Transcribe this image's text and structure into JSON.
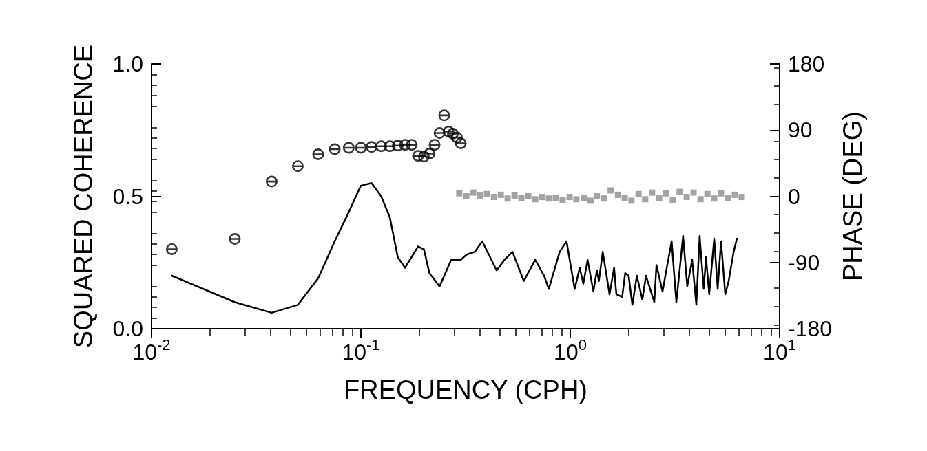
{
  "chart_data": {
    "type": "line",
    "xlabel": "FREQUENCY (CPH)",
    "ylabel": "SQUARED COHERENCE",
    "y2label": "PHASE (DEG)",
    "log": "x",
    "grid": false,
    "xlim": [
      0.01,
      10
    ],
    "xticks": [
      {
        "value": 0.01,
        "label": "10$^{-2}$"
      },
      {
        "value": 0.1,
        "label": "10$^{-1}$"
      },
      {
        "value": 1,
        "label": "10$^{0}$"
      },
      {
        "value": 10,
        "label": "10$^{1}$"
      }
    ],
    "ylim": [
      0,
      1
    ],
    "yticks": [
      {
        "value": 0,
        "label": "0.0"
      },
      {
        "value": 0.5,
        "label": "0.5"
      },
      {
        "value": 1,
        "label": "1.0"
      }
    ],
    "y2lim": [
      -180,
      180
    ],
    "y2ticks": [
      -180,
      -90,
      0,
      90,
      180
    ],
    "series": [
      {
        "color": "#000000",
        "marker": "none",
        "line_style": "solid",
        "x": [
          0.0125,
          0.025,
          0.0375,
          0.05,
          0.0625,
          0.075,
          0.0875,
          0.1,
          0.1125,
          0.125,
          0.1375,
          0.15,
          0.1625,
          0.1875,
          0.2,
          0.2125,
          0.2375,
          0.27,
          0.3,
          0.32,
          0.35,
          0.38,
          0.445,
          0.485,
          0.53,
          0.6,
          0.68,
          0.75,
          0.79,
          0.89,
          0.96,
          1.05,
          1.11,
          1.155,
          1.21,
          1.29,
          1.34,
          1.37,
          1.43,
          1.54,
          1.62,
          1.66,
          1.77,
          1.83,
          1.9,
          1.98,
          2.08,
          2.21,
          2.3,
          2.43,
          2.52,
          2.58,
          2.76,
          2.86,
          3.05,
          3.21,
          3.46,
          3.62,
          3.82,
          4.0,
          4.15,
          4.34,
          4.45,
          4.61,
          4.87,
          5.06,
          5.25,
          5.5,
          5.71,
          6.03,
          6.25
        ],
        "values": [
          0.2,
          0.1,
          0.06,
          0.09,
          0.19,
          0.33,
          0.44,
          0.54,
          0.55,
          0.5,
          0.42,
          0.27,
          0.23,
          0.31,
          0.3,
          0.21,
          0.16,
          0.26,
          0.26,
          0.28,
          0.29,
          0.33,
          0.22,
          0.26,
          0.29,
          0.18,
          0.26,
          0.2,
          0.15,
          0.29,
          0.33,
          0.15,
          0.23,
          0.17,
          0.26,
          0.14,
          0.22,
          0.18,
          0.29,
          0.13,
          0.23,
          0.13,
          0.12,
          0.21,
          0.2,
          0.09,
          0.2,
          0.11,
          0.2,
          0.14,
          0.1,
          0.24,
          0.14,
          0.21,
          0.33,
          0.1,
          0.35,
          0.16,
          0.26,
          0.09,
          0.35,
          0.15,
          0.27,
          0.13,
          0.34,
          0.15,
          0.33,
          0.13,
          0.18,
          0.29,
          0.34
        ]
      },
      {
        "type": "scatter",
        "axis": "y2",
        "color": "#000000",
        "marker": "circle",
        "x": [
          0.0125,
          0.025,
          0.0375,
          0.05,
          0.0625,
          0.075,
          0.0875,
          0.1,
          0.1125,
          0.125,
          0.1375,
          0.15,
          0.1625,
          0.175,
          0.1875,
          0.2,
          0.2125,
          0.225,
          0.2375,
          0.25,
          0.2625,
          0.275,
          0.2875,
          0.3
        ],
        "values": [
          -72,
          -58,
          20,
          41,
          57,
          64,
          66,
          66,
          67,
          68,
          68,
          69,
          70,
          70,
          55,
          54,
          58,
          70,
          86,
          110,
          88,
          85,
          80,
          72
        ]
      },
      {
        "type": "scatter",
        "axis": "y2",
        "color": "#8c8c8c",
        "marker": "square",
        "x": [
          0.295,
          0.319,
          0.344,
          0.371,
          0.4,
          0.432,
          0.466,
          0.502,
          0.542,
          0.584,
          0.63,
          0.68,
          0.733,
          0.791,
          0.853,
          0.92,
          0.993,
          1.07,
          1.16,
          1.25,
          1.34,
          1.45,
          1.56,
          1.69,
          1.82,
          1.96,
          2.12,
          2.28,
          2.46,
          2.66,
          2.86,
          3.09,
          3.33,
          3.6,
          3.88,
          4.19,
          4.52,
          4.87,
          5.25,
          5.66,
          6.11,
          6.59
        ],
        "values": [
          4,
          0,
          5,
          1,
          3,
          -1,
          2,
          -3,
          1,
          -2,
          0,
          -4,
          -1,
          -3,
          -2,
          -5,
          -1,
          -4,
          -2,
          -6,
          0,
          -3,
          8,
          2,
          -2,
          -6,
          3,
          -4,
          5,
          -2,
          4,
          -5,
          6,
          -1,
          5,
          -4,
          3,
          -3,
          4,
          -2,
          2,
          -1
        ]
      }
    ]
  }
}
